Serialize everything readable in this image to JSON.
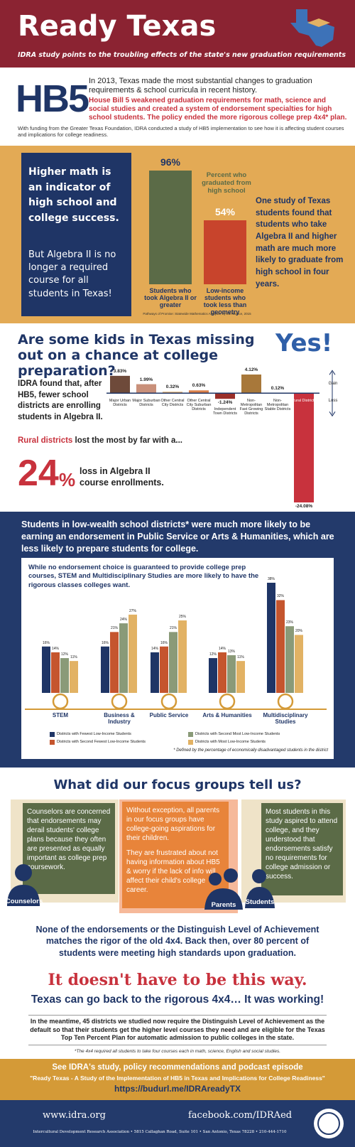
{
  "header": {
    "title": "Ready Texas",
    "subtitle": "IDRA study points to the troubling effects of the state's new graduation requirements"
  },
  "hb5": {
    "badge": "HB5",
    "intro": "In 2013, Texas made the most substantial changes to graduation requirements & school curricula in recent history.",
    "highlight": "House Bill 5 weakened graduation requirements for math, science and social studies and created a system of endorsement specialties for high school students. The policy ended the more rigorous college prep 4x4* plan.",
    "funding": "With funding from the Greater Texas Foundation, IDRA conducted a study of HB5 implementation to see how it is affecting student courses and implications for college readiness."
  },
  "math": {
    "box_heading": "Higher math is an indicator of high school and college success.",
    "box_text": "But Algebra II is no longer a required course for all students in Texas!",
    "finding": "One study of Texas students found that students who take Algebra II and higher math are much more likely to graduate from high school in four years."
  },
  "algebra": {
    "question": "Are some kids in Texas missing out on a chance at college preparation?",
    "answer": "Yes!",
    "finding": "IDRA found that, after HB5, fewer school districts are enrolling students in Algebra II.",
    "rural_lead": "Rural districts",
    "rural_rest": "lost the most by far with a...",
    "big_number": "24",
    "big_unit": "%",
    "loss_text": "loss in Algebra II course enrollments."
  },
  "endorsements": {
    "heading": "Students in low-wealth school districts* were much more likely to be earning an endorsement in Public Service or Arts & Humanities, which are less likely to prepare students for college."
  },
  "focus": {
    "heading": "What did our focus groups tell us?",
    "groups": [
      {
        "label": "Counselors",
        "text": "Counselors are concerned that endorsements may derail students' college plans because they often are presented as equally important as college prep coursework."
      },
      {
        "label": "Parents",
        "text": "Without exception, all parents in our focus groups have college-going aspirations for their children.",
        "text2": "They are frustrated about not having information about HB5 & worry if the lack of info will affect their child's college career."
      },
      {
        "label": "Students",
        "text": "Most students in this study aspired to attend college, and they understood that endorsements satisfy no requirements for college admission or success."
      }
    ]
  },
  "conclusion": {
    "rigor": "None of the endorsements or the Distinguish Level of Achievement matches the rigor of the old 4x4. Back then, over 80 percent of students were meeting high standards upon graduation.",
    "slogan": "It doesn't have to be this way.",
    "call": "Texas can go back to the rigorous 4x4… It was working!",
    "meantime": "In the meantime, 45 districts we studied now require the Distinguish Level of Achievement as the default so that their students get the higher level courses they need and are eligible for the Texas Top Ten Percent Plan for automatic admission to public colleges in the state.",
    "footnote": "*The 4x4 required all students to take four courses each in math, science, English and social studies."
  },
  "resources": {
    "lead": "See IDRA's study, policy recommendations and podcast episode",
    "study": "\"Ready Texas - A Study of the Implementation of HB5 in Texas and Implications for College Readiness\"",
    "link": "https://budurl.me/IDRAreadyTX"
  },
  "footer": {
    "website": "www.idra.org",
    "facebook": "facebook.com/IDRAed",
    "address": "Intercultural Development Research Association • 5815 Callaghan Road, Suite 101 • San Antonio, Texas 78228 • 210-444-1710"
  },
  "chart_data": [
    {
      "type": "bar",
      "title": "Percent who graduated from high school",
      "categories": [
        "Students who took Algebra II or greater",
        "Low-income students who took less than geometry"
      ],
      "values": [
        96,
        54
      ],
      "value_labels": [
        "96%",
        "54%"
      ],
      "colors": [
        "#5b6b47",
        "#c8442c"
      ],
      "source": "Pathways of Promise: Statewide Mathematics Analysis, by E3 Alliance, 2015"
    },
    {
      "type": "bar",
      "categories": [
        "Major Urban Districts",
        "Major Suburban Districts",
        "Other Central City Districts",
        "Other Central City Suburban Districts",
        "Independent Town Districts",
        "Non-Metropolitan Fast Growing Districts",
        "Non-Metropolitan Stable Districts",
        "Rural Districts"
      ],
      "values": [
        3.83,
        1.99,
        0.32,
        0.63,
        -1.24,
        4.12,
        0.12,
        -24.08
      ],
      "value_labels": [
        "3.83%",
        "1.99%",
        "0.32%",
        "0.63%",
        "-1.24%",
        "4.12%",
        "0.12%",
        "-24.08%"
      ],
      "colors": [
        "#6e4a3a",
        "#c9907a",
        "#e0b070",
        "#d9804a",
        "#9a2f2a",
        "#a8783a",
        "#233a6b",
        "#c8323d"
      ],
      "gain_label": "Gain",
      "loss_label": "Loss"
    },
    {
      "type": "grouped-bar",
      "intro": "While no endorsement choice is guaranteed to provide college prep courses, STEM and Multidisciplinary Studies are more likely to have the rigorous classes colleges want.",
      "categories": [
        "STEM",
        "Business & Industry",
        "Public Service",
        "Arts & Humanities",
        "Multidisciplinary Studies"
      ],
      "series": [
        {
          "name": "Districts with Fewest Low-Income Students",
          "color": "#1f3566",
          "values": [
            16,
            16,
            14,
            12,
            38
          ],
          "value_labels": [
            "16%",
            "16%",
            "14%",
            "12%",
            "38%"
          ]
        },
        {
          "name": "Districts with Second Fewest Low-Income Students",
          "color": "#c5552e",
          "values": [
            14,
            21,
            16,
            14,
            32
          ],
          "value_labels": [
            "14%",
            "21%",
            "16%",
            "14%",
            "32%"
          ]
        },
        {
          "name": "Districts with Second Most Low-Income Students",
          "color": "#8a9a78",
          "values": [
            12,
            24,
            21,
            13,
            23
          ],
          "value_labels": [
            "12%",
            "24%",
            "21%",
            "13%",
            "23%"
          ]
        },
        {
          "name": "Districts with Most Low-Income Students",
          "color": "#e2b264",
          "values": [
            11,
            27,
            25,
            11,
            20
          ],
          "value_labels": [
            "11%",
            "27%",
            "25%",
            "11%",
            "20%"
          ]
        }
      ],
      "note": "* Defined by the percentage of economically disadvantaged students in the district"
    }
  ]
}
